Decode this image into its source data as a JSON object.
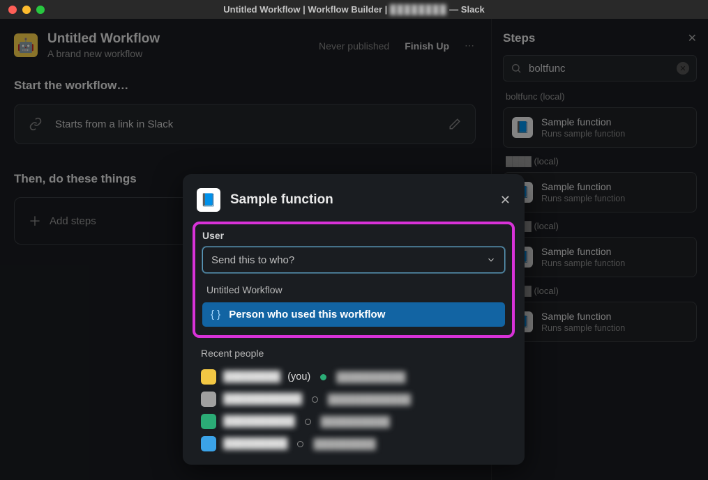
{
  "titlebar": {
    "pre": "Untitled Workflow | Workflow Builder | ",
    "blur": "████████",
    "post": " — Slack"
  },
  "workflow": {
    "title": "Untitled Workflow",
    "subtitle": "A brand new workflow"
  },
  "header": {
    "never": "Never published",
    "finish": "Finish Up"
  },
  "section": {
    "start": "Start the workflow…",
    "then": "Then, do these things"
  },
  "trigger": {
    "text": "Starts from a link in Slack"
  },
  "add": {
    "text": "Add steps"
  },
  "steps": {
    "title": "Steps",
    "search_value": "boltfunc",
    "groups": [
      {
        "label": "boltfunc (local)",
        "title": "Sample function",
        "sub": "Runs sample function"
      },
      {
        "label": "████ (local)",
        "title": "Sample function",
        "sub": "Runs sample function"
      },
      {
        "label": "████ (local)",
        "title": "Sample function",
        "sub": "Runs sample function"
      },
      {
        "label": "████ (local)",
        "title": "Sample function",
        "sub": "Runs sample function"
      }
    ]
  },
  "modal": {
    "title": "Sample function",
    "field_label": "User",
    "placeholder": "Send this to who?",
    "workflow_name": "Untitled Workflow",
    "option": "Person who used this workflow",
    "recent_label": "Recent people",
    "you_suffix": "(you)",
    "people": [
      {
        "name": "████████",
        "sec": "██████████",
        "you": true,
        "online": true,
        "avatar": "y"
      },
      {
        "name": "███████████",
        "sec": "████████████",
        "you": false,
        "online": false,
        "avatar": "g"
      },
      {
        "name": "██████████",
        "sec": "██████████",
        "you": false,
        "online": false,
        "avatar": "gr"
      },
      {
        "name": "█████████",
        "sec": "█████████",
        "you": false,
        "online": false,
        "avatar": "b"
      }
    ]
  }
}
